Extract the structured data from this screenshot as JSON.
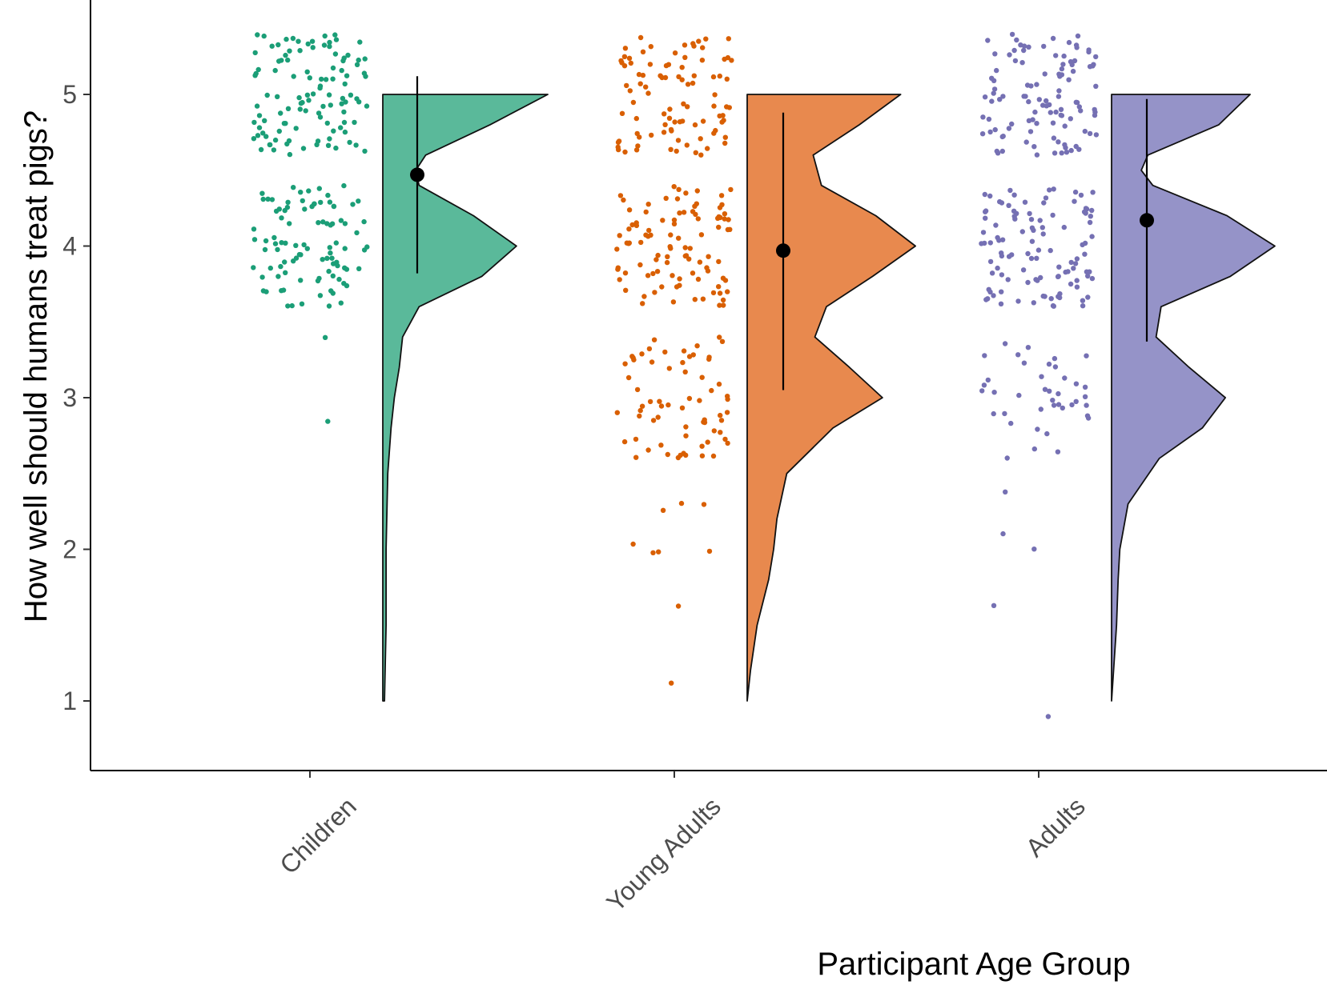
{
  "chart_data": {
    "type": "raincloud",
    "title": "",
    "xlabel": "Participant Age Group",
    "ylabel": "How well should humans treat pigs?",
    "y_ticks": [
      1,
      2,
      3,
      4,
      5
    ],
    "ylim": [
      0.55,
      5.5
    ],
    "grid": false,
    "legend": "none",
    "categories": [
      "Children",
      "Young Adults",
      "Adults"
    ],
    "series": [
      {
        "name": "Children",
        "color": "#1b9e77",
        "fill": "#5ab99a",
        "mean": 4.47,
        "error_bar": [
          3.82,
          5.12
        ],
        "density": [
          [
            1.0,
            0.01
          ],
          [
            1.5,
            0.02
          ],
          [
            2.0,
            0.02
          ],
          [
            2.5,
            0.03
          ],
          [
            2.8,
            0.05
          ],
          [
            3.0,
            0.07
          ],
          [
            3.2,
            0.1
          ],
          [
            3.4,
            0.12
          ],
          [
            3.6,
            0.22
          ],
          [
            3.8,
            0.6
          ],
          [
            4.0,
            0.81
          ],
          [
            4.2,
            0.55
          ],
          [
            4.4,
            0.22
          ],
          [
            4.5,
            0.2
          ],
          [
            4.6,
            0.26
          ],
          [
            4.8,
            0.65
          ],
          [
            5.0,
            1.0
          ]
        ],
        "points": {
          "1": 0,
          "2": 0,
          "3": 2,
          "4": 95,
          "5": 110
        },
        "point_spread": 0.4
      },
      {
        "name": "Young Adults",
        "color": "#d95f02",
        "fill": "#e8894e",
        "mean": 3.97,
        "error_bar": [
          3.05,
          4.88
        ],
        "density": [
          [
            1.0,
            0.0
          ],
          [
            1.2,
            0.02
          ],
          [
            1.5,
            0.06
          ],
          [
            1.8,
            0.13
          ],
          [
            2.0,
            0.16
          ],
          [
            2.2,
            0.18
          ],
          [
            2.5,
            0.24
          ],
          [
            2.8,
            0.52
          ],
          [
            3.0,
            0.82
          ],
          [
            3.2,
            0.62
          ],
          [
            3.4,
            0.41
          ],
          [
            3.6,
            0.48
          ],
          [
            3.8,
            0.76
          ],
          [
            4.0,
            1.02
          ],
          [
            4.2,
            0.78
          ],
          [
            4.4,
            0.45
          ],
          [
            4.6,
            0.4
          ],
          [
            4.8,
            0.68
          ],
          [
            5.0,
            0.93
          ]
        ],
        "points": {
          "1": 1,
          "2": 8,
          "3": 66,
          "4": 98,
          "5": 92
        },
        "point_spread": 0.4
      },
      {
        "name": "Adults",
        "color": "#7570b3",
        "fill": "#9593c8",
        "mean": 4.17,
        "error_bar": [
          3.37,
          4.97
        ],
        "density": [
          [
            1.0,
            0.0
          ],
          [
            1.5,
            0.03
          ],
          [
            1.8,
            0.04
          ],
          [
            2.0,
            0.05
          ],
          [
            2.3,
            0.1
          ],
          [
            2.6,
            0.29
          ],
          [
            2.8,
            0.55
          ],
          [
            3.0,
            0.69
          ],
          [
            3.2,
            0.47
          ],
          [
            3.4,
            0.27
          ],
          [
            3.6,
            0.3
          ],
          [
            3.8,
            0.72
          ],
          [
            4.0,
            0.99
          ],
          [
            4.2,
            0.7
          ],
          [
            4.4,
            0.25
          ],
          [
            4.5,
            0.18
          ],
          [
            4.6,
            0.22
          ],
          [
            4.8,
            0.65
          ],
          [
            5.0,
            0.84
          ]
        ],
        "points": {
          "1": 1,
          "2": 4,
          "3": 40,
          "4": 108,
          "5": 108
        },
        "point_spread": 0.4
      }
    ]
  }
}
